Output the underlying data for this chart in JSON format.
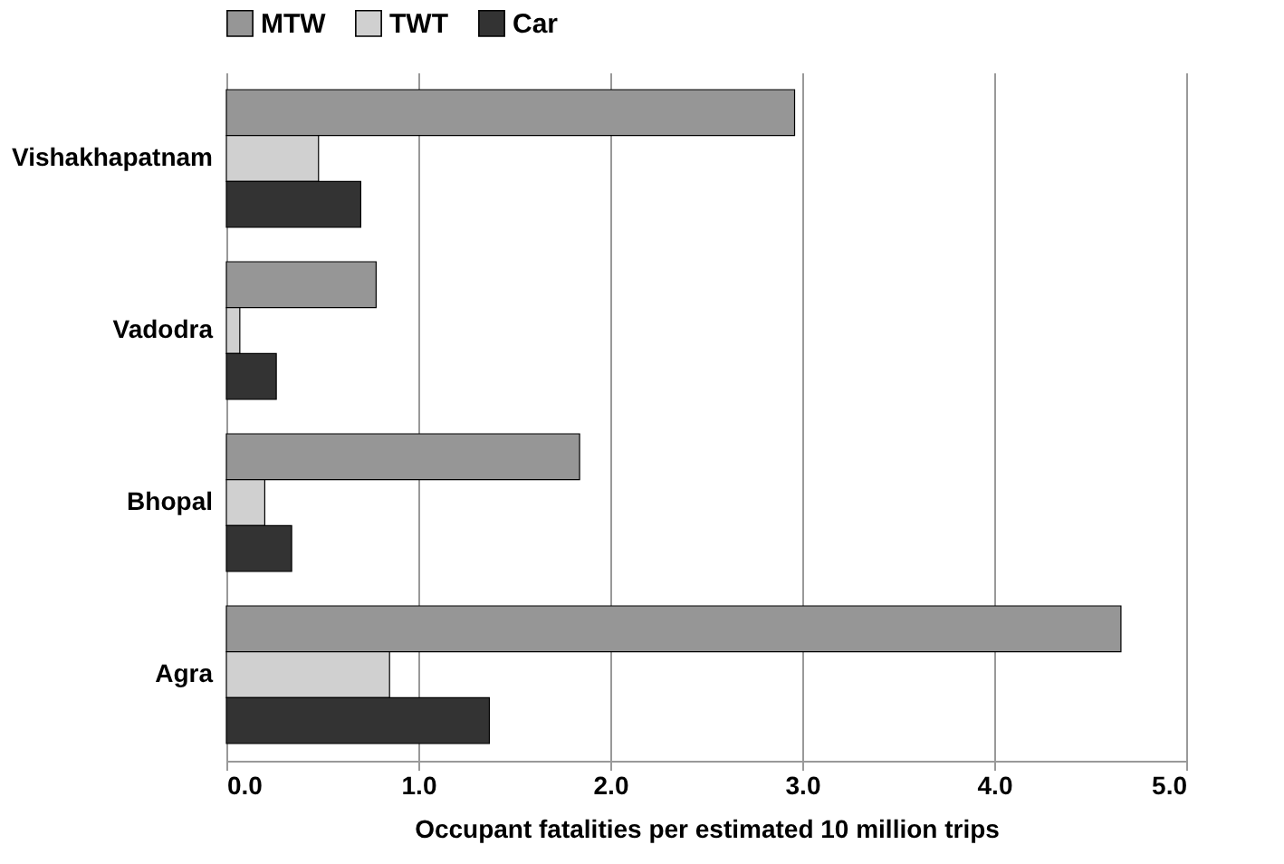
{
  "chart_data": {
    "type": "bar",
    "orientation": "horizontal",
    "xlabel": "Occupant fatalities per estimated 10 million trips",
    "categories": [
      "Vishakhapatnam",
      "Vadodra",
      "Bhopal",
      "Agra"
    ],
    "series": [
      {
        "name": "MTW",
        "color": "#969696",
        "values": [
          2.96,
          0.78,
          1.84,
          4.66
        ]
      },
      {
        "name": "TWT",
        "color": "#d0d0d0",
        "values": [
          0.48,
          0.07,
          0.2,
          0.85
        ]
      },
      {
        "name": "Car",
        "color": "#333333",
        "values": [
          0.7,
          0.26,
          0.34,
          1.37
        ]
      }
    ],
    "xlim": [
      0,
      5
    ],
    "xticks": [
      {
        "value": 0,
        "label": "0.0"
      },
      {
        "value": 1,
        "label": "1.0"
      },
      {
        "value": 2,
        "label": "2.0"
      },
      {
        "value": 3,
        "label": "3.0"
      },
      {
        "value": 4,
        "label": "4.0"
      },
      {
        "value": 5,
        "label": "5.0"
      }
    ],
    "grid": "x",
    "legend": "top"
  }
}
